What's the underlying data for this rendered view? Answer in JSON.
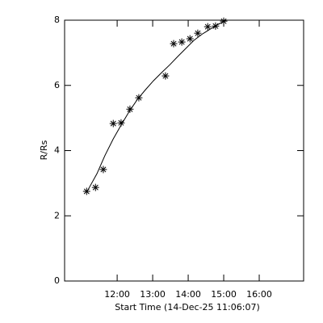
{
  "chart_data": {
    "type": "scatter",
    "xlabel": "Start Time (14-Dec-25 11:06:07)",
    "ylabel": "R/Rs",
    "xlim": [
      10.52,
      17.25
    ],
    "ylim": [
      0,
      8
    ],
    "xticks": [
      {
        "value": 12,
        "label": "12:00"
      },
      {
        "value": 13,
        "label": "13:00"
      },
      {
        "value": 14,
        "label": "14:00"
      },
      {
        "value": 15,
        "label": "15:00"
      },
      {
        "value": 16,
        "label": "16:00"
      }
    ],
    "yticks": [
      0,
      2,
      4,
      6,
      8
    ],
    "color": "#000000",
    "series": [
      {
        "marker": "asterisk",
        "x": [
          11.14,
          11.39,
          11.61,
          11.89,
          12.11,
          12.36,
          12.61,
          13.36,
          13.59,
          13.82,
          14.05,
          14.27,
          14.55,
          14.77,
          15.0
        ],
        "values": [
          2.75,
          2.87,
          3.42,
          4.83,
          4.85,
          5.27,
          5.62,
          6.29,
          7.28,
          7.33,
          7.43,
          7.6,
          7.8,
          7.82,
          7.97
        ]
      },
      {
        "marker": "line",
        "x": [
          11.14,
          11.43,
          11.66,
          11.89,
          12.11,
          12.34,
          12.57,
          12.8,
          13.02,
          13.25,
          13.48,
          13.7,
          13.93,
          14.16,
          14.39,
          14.61,
          14.84,
          15.07
        ],
        "values": [
          2.72,
          3.29,
          3.86,
          4.36,
          4.78,
          5.2,
          5.57,
          5.87,
          6.14,
          6.39,
          6.63,
          6.88,
          7.13,
          7.38,
          7.57,
          7.72,
          7.87,
          8.0
        ]
      }
    ]
  }
}
